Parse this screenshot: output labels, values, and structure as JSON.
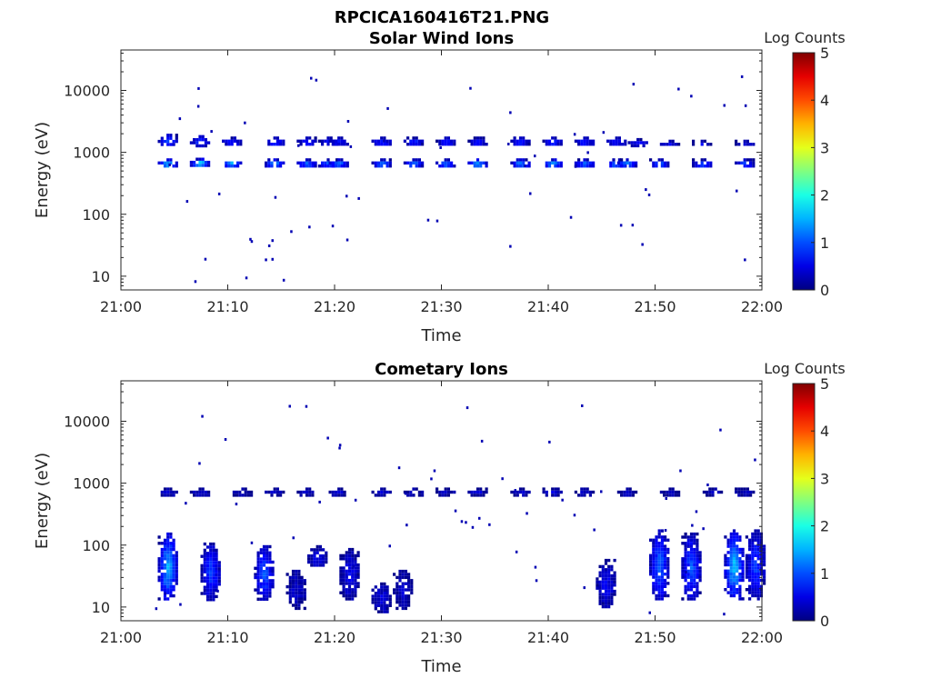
{
  "figure": {
    "title": "RPCICA160416T21.PNG"
  },
  "chart_data": [
    {
      "type": "heatmap",
      "title": "Solar Wind Ions",
      "xlabel": "Time",
      "ylabel": "Energy (eV)",
      "x_ticks": [
        "21:00",
        "21:10",
        "21:20",
        "21:30",
        "21:40",
        "21:50",
        "22:00"
      ],
      "x_range": [
        "21:00",
        "22:00"
      ],
      "y_scale": "log",
      "y_ticks": [
        "10",
        "100",
        "1000",
        "10000"
      ],
      "y_range": [
        6,
        45000
      ],
      "colorbar": {
        "label": "Log Counts",
        "ticks": [
          "0",
          "1",
          "2",
          "3",
          "4",
          "5"
        ],
        "range": [
          0,
          5
        ],
        "colormap": "jet"
      },
      "features": [
        {
          "t": "21:04",
          "e": [
            580,
            800
          ],
          "log_counts": 1.8
        },
        {
          "t": "21:04",
          "e": [
            1300,
            2000
          ],
          "log_counts": 1.1
        },
        {
          "t": "21:07",
          "e": [
            600,
            820
          ],
          "log_counts": 1.9
        },
        {
          "t": "21:07",
          "e": [
            1300,
            1900
          ],
          "log_counts": 1.0
        },
        {
          "t": "21:10",
          "e": [
            600,
            800
          ],
          "log_counts": 1.7
        },
        {
          "t": "21:10",
          "e": [
            1300,
            1800
          ],
          "log_counts": 0.9
        },
        {
          "t": "21:14",
          "e": [
            600,
            800
          ],
          "log_counts": 1.6
        },
        {
          "t": "21:14",
          "e": [
            1300,
            1800
          ],
          "log_counts": 0.9
        },
        {
          "t": "21:17",
          "e": [
            580,
            800
          ],
          "log_counts": 1.3
        },
        {
          "t": "21:17",
          "e": [
            1300,
            1800
          ],
          "log_counts": 0.8
        },
        {
          "t": "21:19",
          "e": [
            600,
            800
          ],
          "log_counts": 1.3
        },
        {
          "t": "21:19",
          "e": [
            1300,
            1800
          ],
          "log_counts": 0.8
        },
        {
          "t": "21:20",
          "e": [
            580,
            800
          ],
          "log_counts": 1.3
        },
        {
          "t": "21:20",
          "e": [
            1300,
            1800
          ],
          "log_counts": 0.8
        },
        {
          "t": "21:24",
          "e": [
            580,
            800
          ],
          "log_counts": 1.4
        },
        {
          "t": "21:24",
          "e": [
            1300,
            1800
          ],
          "log_counts": 0.9
        },
        {
          "t": "21:27",
          "e": [
            580,
            800
          ],
          "log_counts": 1.4
        },
        {
          "t": "21:27",
          "e": [
            1300,
            1800
          ],
          "log_counts": 0.9
        },
        {
          "t": "21:30",
          "e": [
            580,
            800
          ],
          "log_counts": 1.4
        },
        {
          "t": "21:30",
          "e": [
            1300,
            1800
          ],
          "log_counts": 0.9
        },
        {
          "t": "21:33",
          "e": [
            580,
            800
          ],
          "log_counts": 1.6
        },
        {
          "t": "21:33",
          "e": [
            1300,
            1800
          ],
          "log_counts": 0.9
        },
        {
          "t": "21:37",
          "e": [
            580,
            800
          ],
          "log_counts": 1.5
        },
        {
          "t": "21:37",
          "e": [
            1300,
            1800
          ],
          "log_counts": 0.9
        },
        {
          "t": "21:40",
          "e": [
            580,
            800
          ],
          "log_counts": 1.7
        },
        {
          "t": "21:40",
          "e": [
            1300,
            1800
          ],
          "log_counts": 0.9
        },
        {
          "t": "21:43",
          "e": [
            580,
            800
          ],
          "log_counts": 1.3
        },
        {
          "t": "21:43",
          "e": [
            1300,
            1800
          ],
          "log_counts": 0.9
        },
        {
          "t": "21:46",
          "e": [
            580,
            800
          ],
          "log_counts": 1.5
        },
        {
          "t": "21:46",
          "e": [
            1300,
            1800
          ],
          "log_counts": 0.8
        },
        {
          "t": "21:47",
          "e": [
            580,
            800
          ],
          "log_counts": 1.4
        },
        {
          "t": "21:48",
          "e": [
            1300,
            1700
          ],
          "log_counts": 0.7
        },
        {
          "t": "21:50",
          "e": [
            580,
            800
          ],
          "log_counts": 1.2
        },
        {
          "t": "21:51",
          "e": [
            1300,
            1600
          ],
          "log_counts": 0.6
        },
        {
          "t": "21:54",
          "e": [
            580,
            800
          ],
          "log_counts": 1.1
        },
        {
          "t": "21:54",
          "e": [
            1300,
            1600
          ],
          "log_counts": 0.6
        },
        {
          "t": "21:58",
          "e": [
            580,
            800
          ],
          "log_counts": 1.1
        },
        {
          "t": "21:58",
          "e": [
            1300,
            1600
          ],
          "log_counts": 0.5
        }
      ]
    },
    {
      "type": "heatmap",
      "title": "Cometary Ions",
      "xlabel": "Time",
      "ylabel": "Energy (eV)",
      "x_ticks": [
        "21:00",
        "21:10",
        "21:20",
        "21:30",
        "21:40",
        "21:50",
        "22:00"
      ],
      "x_range": [
        "21:00",
        "22:00"
      ],
      "y_scale": "log",
      "y_ticks": [
        "10",
        "100",
        "1000",
        "10000"
      ],
      "y_range": [
        6,
        45000
      ],
      "colorbar": {
        "label": "Log Counts",
        "ticks": [
          "0",
          "1",
          "2",
          "3",
          "4",
          "5"
        ],
        "range": [
          0,
          5
        ],
        "colormap": "jet"
      },
      "features": [
        {
          "t": "21:04",
          "e": [
            650,
            850
          ],
          "log_counts": 0.5
        },
        {
          "t": "21:07",
          "e": [
            650,
            850
          ],
          "log_counts": 0.5
        },
        {
          "t": "21:11",
          "e": [
            650,
            850
          ],
          "log_counts": 0.4
        },
        {
          "t": "21:14",
          "e": [
            650,
            850
          ],
          "log_counts": 0.4
        },
        {
          "t": "21:17",
          "e": [
            650,
            850
          ],
          "log_counts": 0.4
        },
        {
          "t": "21:20",
          "e": [
            650,
            850
          ],
          "log_counts": 0.4
        },
        {
          "t": "21:24",
          "e": [
            650,
            850
          ],
          "log_counts": 0.5
        },
        {
          "t": "21:27",
          "e": [
            650,
            850
          ],
          "log_counts": 0.4
        },
        {
          "t": "21:30",
          "e": [
            650,
            850
          ],
          "log_counts": 0.4
        },
        {
          "t": "21:33",
          "e": [
            650,
            850
          ],
          "log_counts": 0.5
        },
        {
          "t": "21:37",
          "e": [
            650,
            850
          ],
          "log_counts": 0.4
        },
        {
          "t": "21:40",
          "e": [
            650,
            850
          ],
          "log_counts": 0.5
        },
        {
          "t": "21:43",
          "e": [
            650,
            850
          ],
          "log_counts": 0.4
        },
        {
          "t": "21:47",
          "e": [
            650,
            850
          ],
          "log_counts": 0.4
        },
        {
          "t": "21:51",
          "e": [
            650,
            850
          ],
          "log_counts": 0.4
        },
        {
          "t": "21:55",
          "e": [
            650,
            850
          ],
          "log_counts": 0.4
        },
        {
          "t": "21:58",
          "e": [
            650,
            850
          ],
          "log_counts": 0.4
        },
        {
          "t": "21:04",
          "e": [
            13,
            160
          ],
          "log_counts": 1.6
        },
        {
          "t": "21:08",
          "e": [
            13,
            110
          ],
          "log_counts": 1.0
        },
        {
          "t": "21:13",
          "e": [
            13,
            100
          ],
          "log_counts": 1.1
        },
        {
          "t": "21:16",
          "e": [
            10,
            40
          ],
          "log_counts": 0.4
        },
        {
          "t": "21:18",
          "e": [
            45,
            100
          ],
          "log_counts": 0.6
        },
        {
          "t": "21:21",
          "e": [
            13,
            90
          ],
          "log_counts": 0.6
        },
        {
          "t": "21:24",
          "e": [
            8,
            25
          ],
          "log_counts": 0.5
        },
        {
          "t": "21:26",
          "e": [
            10,
            40
          ],
          "log_counts": 0.4
        },
        {
          "t": "21:45",
          "e": [
            10,
            60
          ],
          "log_counts": 0.6
        },
        {
          "t": "21:50",
          "e": [
            13,
            180
          ],
          "log_counts": 1.2
        },
        {
          "t": "21:53",
          "e": [
            13,
            160
          ],
          "log_counts": 1.1
        },
        {
          "t": "21:57",
          "e": [
            13,
            180
          ],
          "log_counts": 1.7
        },
        {
          "t": "21:59",
          "e": [
            13,
            180
          ],
          "log_counts": 1.0
        }
      ]
    }
  ]
}
